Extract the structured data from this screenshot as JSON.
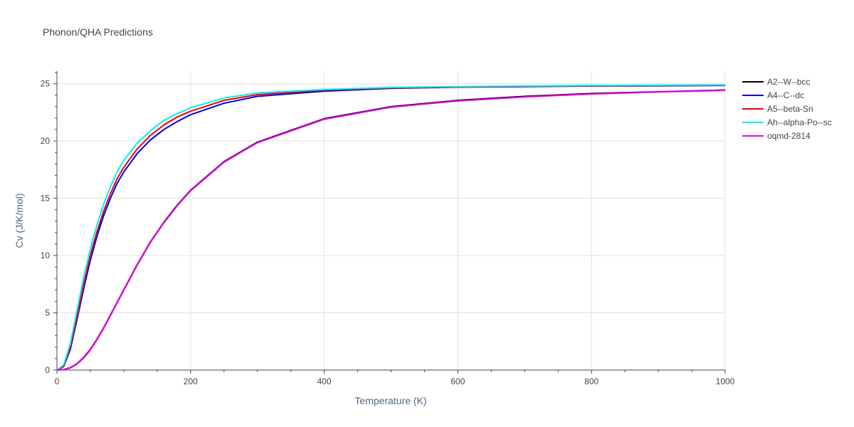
{
  "chart_data": {
    "type": "line",
    "title": "Phonon/QHA Predictions",
    "xlabel": "Temperature (K)",
    "ylabel": "Cv (J/K/mol)",
    "xlim": [
      0,
      1000
    ],
    "ylim": [
      0,
      26.1
    ],
    "x_ticks": [
      0,
      200,
      400,
      600,
      800,
      1000
    ],
    "y_ticks": [
      0,
      5,
      10,
      15,
      20,
      25
    ],
    "grid": true,
    "legend_position": "right",
    "series": [
      {
        "name": "A2--W--bcc",
        "color": "#000000",
        "x": [
          0,
          10,
          20,
          30,
          40,
          50,
          60,
          70,
          80,
          90,
          100,
          120,
          140,
          160,
          180,
          200,
          250,
          300,
          400,
          500,
          600,
          700,
          800,
          900,
          1000
        ],
        "y": [
          0,
          0.05,
          0.2,
          0.55,
          1.1,
          1.8,
          2.7,
          3.7,
          4.8,
          5.9,
          7.0,
          9.2,
          11.2,
          12.9,
          14.4,
          15.7,
          18.2,
          19.9,
          21.95,
          23.0,
          23.55,
          23.9,
          24.15,
          24.3,
          24.45
        ]
      },
      {
        "name": "A4--C--dc",
        "color": "#0000dd",
        "x": [
          0,
          10,
          20,
          30,
          40,
          50,
          60,
          70,
          80,
          90,
          100,
          120,
          140,
          160,
          180,
          200,
          250,
          300,
          400,
          500,
          600,
          700,
          800,
          900,
          1000
        ],
        "y": [
          0,
          0.3,
          1.8,
          4.4,
          7.1,
          9.6,
          11.7,
          13.5,
          15.0,
          16.3,
          17.3,
          18.9,
          20.1,
          21.0,
          21.7,
          22.3,
          23.3,
          23.9,
          24.35,
          24.6,
          24.7,
          24.75,
          24.8,
          24.82,
          24.85
        ]
      },
      {
        "name": "A5--beta-Sn",
        "color": "#ee0000",
        "x": [
          0,
          10,
          20,
          30,
          40,
          50,
          60,
          70,
          80,
          90,
          100,
          120,
          140,
          160,
          180,
          200,
          250,
          300,
          400,
          500,
          600,
          700,
          800,
          900,
          1000
        ],
        "y": [
          0,
          0.35,
          2.0,
          4.7,
          7.5,
          10.0,
          12.1,
          13.9,
          15.4,
          16.7,
          17.7,
          19.3,
          20.5,
          21.4,
          22.1,
          22.6,
          23.55,
          24.05,
          24.45,
          24.65,
          24.72,
          24.78,
          24.82,
          24.85,
          24.87
        ]
      },
      {
        "name": "Ah--alpha-Po--sc",
        "color": "#00eeee",
        "x": [
          0,
          10,
          20,
          30,
          40,
          50,
          60,
          70,
          80,
          90,
          100,
          120,
          140,
          160,
          180,
          200,
          250,
          300,
          400,
          500,
          600,
          700,
          800,
          900,
          1000
        ],
        "y": [
          0,
          0.45,
          2.3,
          5.2,
          8.1,
          10.6,
          12.7,
          14.5,
          16.0,
          17.3,
          18.3,
          19.8,
          20.9,
          21.8,
          22.4,
          22.9,
          23.75,
          24.2,
          24.5,
          24.68,
          24.75,
          24.8,
          24.85,
          24.87,
          24.9
        ]
      },
      {
        "name": "oqmd-2814",
        "color": "#ee00ee",
        "x": [
          0,
          10,
          20,
          30,
          40,
          50,
          60,
          70,
          80,
          90,
          100,
          120,
          140,
          160,
          180,
          200,
          250,
          300,
          400,
          500,
          600,
          700,
          800,
          900,
          1000
        ],
        "y": [
          0,
          0.04,
          0.18,
          0.52,
          1.05,
          1.75,
          2.65,
          3.65,
          4.75,
          5.85,
          6.95,
          9.15,
          11.15,
          12.85,
          14.35,
          15.65,
          18.15,
          19.85,
          21.9,
          22.95,
          23.5,
          23.85,
          24.1,
          24.28,
          24.42
        ]
      }
    ]
  }
}
